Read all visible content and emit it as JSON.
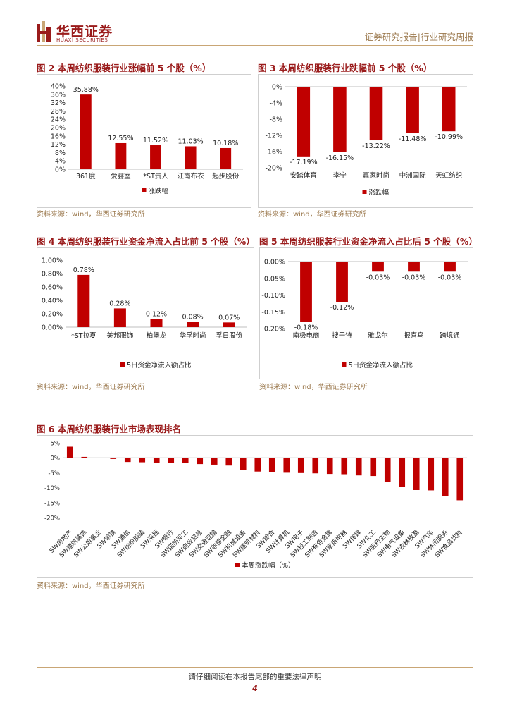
{
  "header": {
    "brand_cn": "华西证券",
    "brand_en": "HUAXI SECURITIES",
    "right_text": "证券研究报告|行业研究周报",
    "colors": {
      "brand": "#9a1b1b",
      "gold": "#c9a675",
      "bar": "#c00000"
    }
  },
  "figures": [
    {
      "title": "图 2 本周纺织服装行业涨幅前 5 个股（%）",
      "source": "资料来源：wind，华西证券研究所"
    },
    {
      "title": "图 3 本周纺织服装行业跌幅前 5 个股（%）",
      "source": "资料来源：wind，华西证券研究所"
    },
    {
      "title": "图 4 本周纺织服装行业资金净流入占比前 5 个股（%）",
      "source": "资料来源：wind，华西证券研究所"
    },
    {
      "title": "图 5 本周纺织服装行业资金净流入占比后 5 个股（%）",
      "source": "资料来源：wind，华西证券研究所"
    },
    {
      "title": "图 6 本周纺织服装行业市场表现排名",
      "source": "资料来源：wind，华西证券研究所"
    }
  ],
  "chart_data": [
    {
      "type": "bar",
      "categories": [
        "361度",
        "爱婴室",
        "*ST贵人",
        "江南布衣",
        "起步股份"
      ],
      "series": [
        {
          "name": "涨跌幅",
          "values": [
            35.88,
            12.55,
            11.52,
            11.03,
            10.18
          ]
        }
      ],
      "labels": [
        "35.88%",
        "12.55%",
        "11.52%",
        "11.03%",
        "10.18%"
      ],
      "yticks": [
        "40%",
        "36%",
        "32%",
        "28%",
        "24%",
        "20%",
        "16%",
        "12%",
        "8%",
        "4%",
        "0%"
      ],
      "ylim": [
        0,
        40
      ],
      "legend": "bottom",
      "grid": false
    },
    {
      "type": "bar",
      "categories": [
        "安踏体育",
        "李宁",
        "赢家时尚",
        "中洲国际",
        "天虹纺织"
      ],
      "series": [
        {
          "name": "涨跌幅",
          "values": [
            -17.19,
            -16.15,
            -13.22,
            -11.48,
            -10.99
          ]
        }
      ],
      "labels": [
        "-17.19%",
        "-16.15%",
        "-13.22%",
        "-11.48%",
        "-10.99%"
      ],
      "yticks": [
        "0%",
        "-4%",
        "-8%",
        "-12%",
        "-16%",
        "-20%"
      ],
      "ylim": [
        -20,
        0
      ],
      "legend": "bottom",
      "grid": false
    },
    {
      "type": "bar",
      "categories": [
        "*ST拉夏",
        "美邦服饰",
        "柏堡龙",
        "华孚时尚",
        "孚日股份"
      ],
      "series": [
        {
          "name": "5日资金净流入额占比",
          "values": [
            0.78,
            0.28,
            0.12,
            0.08,
            0.07
          ]
        }
      ],
      "labels": [
        "0.78%",
        "0.28%",
        "0.12%",
        "0.08%",
        "0.07%"
      ],
      "yticks": [
        "1.00%",
        "0.80%",
        "0.60%",
        "0.40%",
        "0.20%",
        "0.00%"
      ],
      "ylim": [
        0,
        1
      ],
      "legend": "bottom",
      "grid": false
    },
    {
      "type": "bar",
      "categories": [
        "南极电商",
        "搜于特",
        "雅戈尔",
        "报喜鸟",
        "跨境通"
      ],
      "series": [
        {
          "name": "5日资金净流入额占比",
          "values": [
            -0.18,
            -0.12,
            -0.03,
            -0.03,
            -0.03
          ]
        }
      ],
      "labels": [
        "-0.18%",
        "-0.12%",
        "-0.03%",
        "-0.03%",
        "-0.03%"
      ],
      "yticks": [
        "0.00%",
        "-0.05%",
        "-0.10%",
        "-0.15%",
        "-0.20%"
      ],
      "ylim": [
        -0.2,
        0
      ],
      "legend": "bottom",
      "grid": false
    },
    {
      "type": "bar",
      "categories": [
        "SW房地产",
        "SW建筑装饰",
        "SW公用事业",
        "SW钢铁",
        "SW通信",
        "SW纺织服装",
        "SW采掘",
        "SW银行",
        "SW国防军工",
        "SW商业贸易",
        "SW交通运输",
        "SW非银金融",
        "SW机械设备",
        "SW建筑材料",
        "SW综合",
        "SW计算机",
        "SW电子",
        "SW轻工制造",
        "SW有色金属",
        "SW家用电器",
        "SW传媒",
        "SW化工",
        "SW医药生物",
        "SW电气设备",
        "SW农林牧渔",
        "SW汽车",
        "SW休闲服务",
        "SW食品饮料"
      ],
      "series": [
        {
          "name": "本周涨跌幅（%）",
          "values": [
            3.7,
            0.3,
            0.0,
            -0.4,
            -1.4,
            -1.5,
            -1.6,
            -1.7,
            -1.8,
            -2.1,
            -2.3,
            -2.6,
            -4.0,
            -4.6,
            -4.7,
            -5.0,
            -5.1,
            -5.2,
            -5.4,
            -5.5,
            -5.9,
            -6.1,
            -8.1,
            -9.8,
            -10.8,
            -10.9,
            -12.7,
            -14.2
          ]
        }
      ],
      "yticks": [
        "5%",
        "0%",
        "-5%",
        "-10%",
        "-15%",
        "-20%"
      ],
      "ylim": [
        -20,
        5
      ],
      "legend": "bottom",
      "grid": false
    }
  ],
  "footer": {
    "disclaimer": "请仔细阅读在本报告尾部的重要法律声明",
    "page": "4"
  }
}
